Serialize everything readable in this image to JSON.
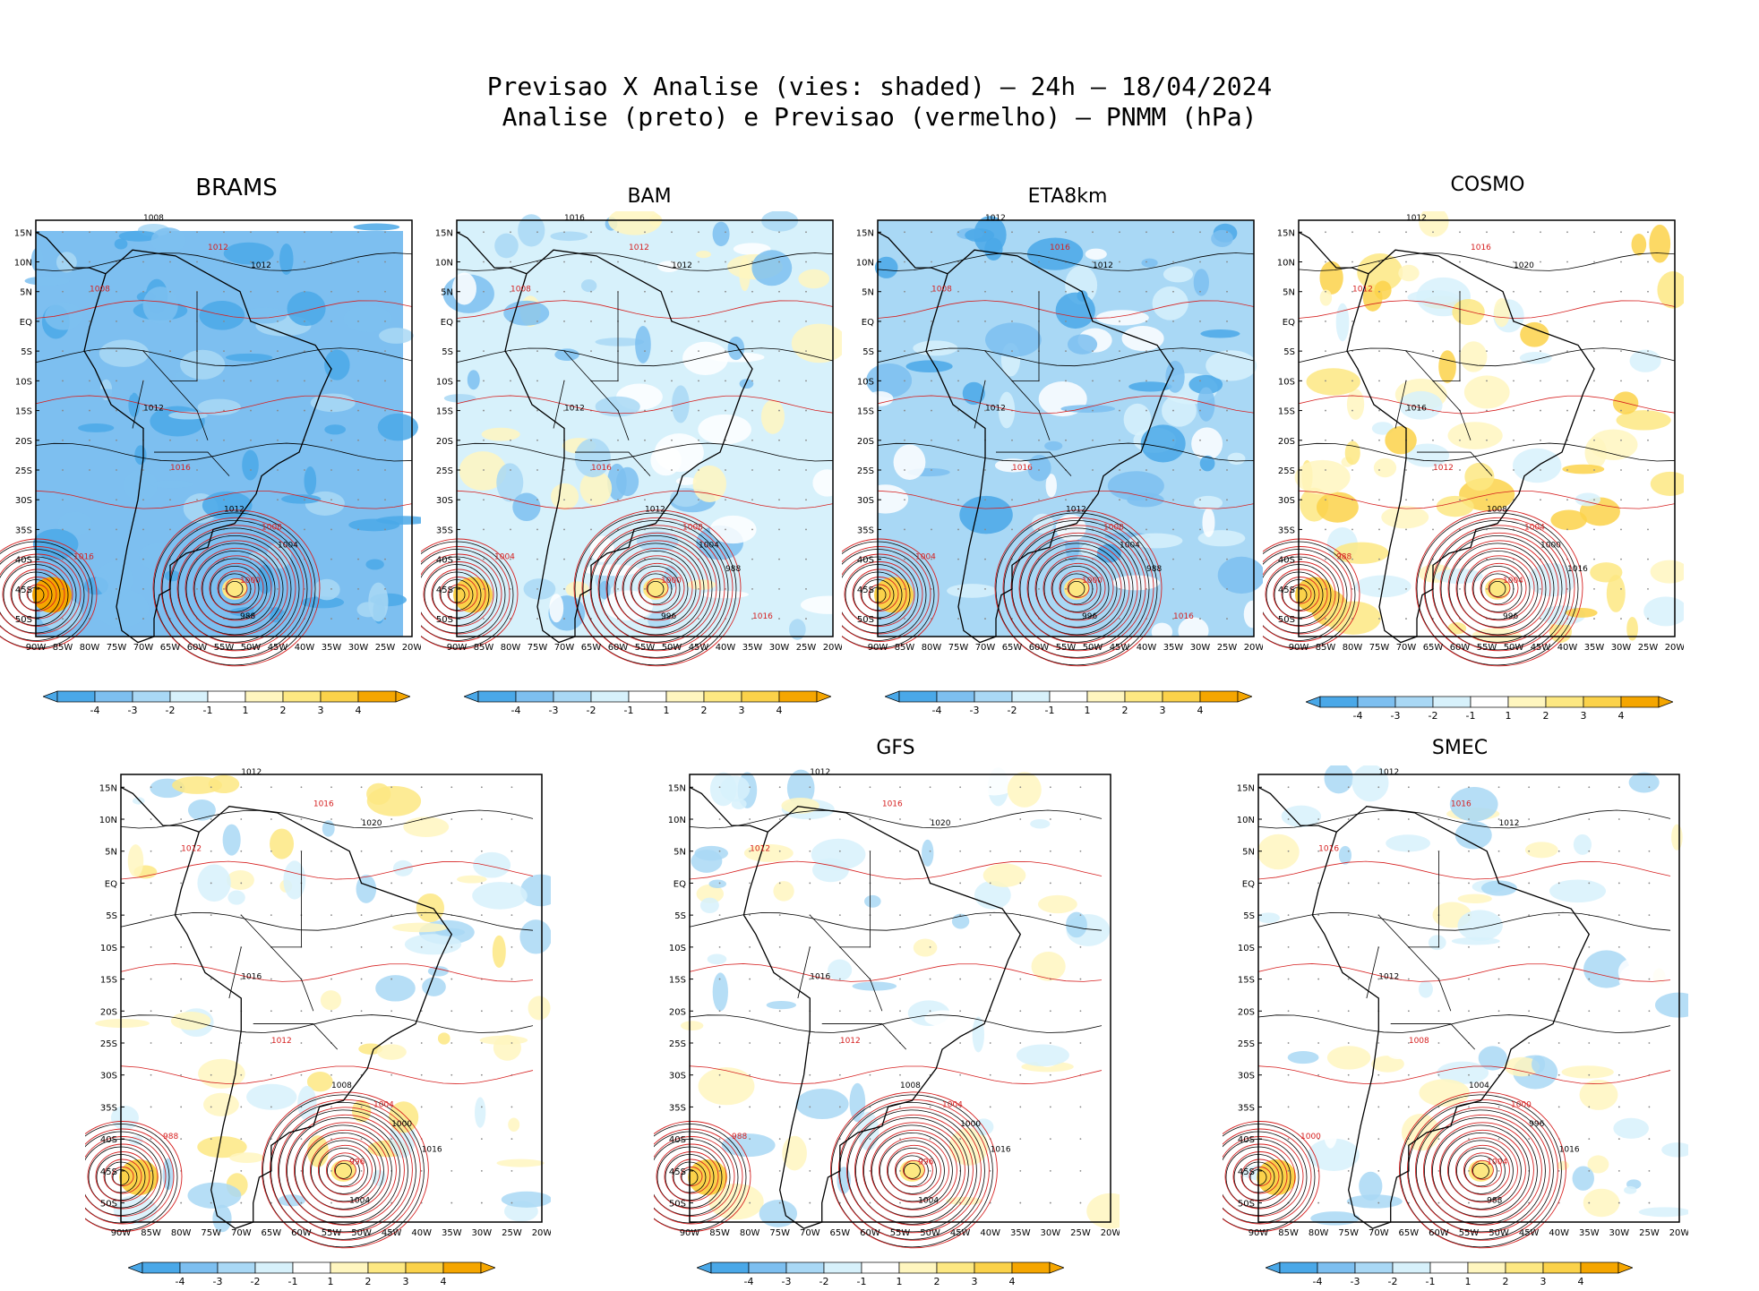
{
  "title_line1": "Previsao X Analise (vies: shaded) – 24h – 18/04/2024",
  "title_line2": "Analise (preto) e Previsao (vermelho) – PNMM (hPa)",
  "lat_labels": [
    "15N",
    "10N",
    "5N",
    "EQ",
    "5S",
    "10S",
    "15S",
    "20S",
    "25S",
    "30S",
    "35S",
    "40S",
    "45S",
    "50S"
  ],
  "lon_labels": [
    "90W",
    "85W",
    "80W",
    "75W",
    "70W",
    "65W",
    "60W",
    "55W",
    "50W",
    "45W",
    "40W",
    "35W",
    "30W",
    "25W",
    "20W"
  ],
  "colorbar_labels": [
    "-4",
    "-3",
    "-2",
    "-1",
    "1",
    "2",
    "3",
    "4"
  ],
  "colors": {
    "bias_neg4": "#4aa8e8",
    "bias_neg3": "#7dbff0",
    "bias_neg2": "#a9d8f5",
    "bias_neg1": "#d7f1fb",
    "bias_pos1": "#fff6bf",
    "bias_pos2": "#fde882",
    "bias_pos3": "#fbd24a",
    "bias_pos4": "#f5a600",
    "analysis_line": "#000000",
    "forecast_line": "#d62020"
  },
  "panels": [
    {
      "name": "BRAMS",
      "bias": "strong-negative",
      "isobars": [
        "1008",
        "1012",
        "1012",
        "1008",
        "1012",
        "1016",
        "1012",
        "1008",
        "1004",
        "1000",
        "988",
        "1016"
      ]
    },
    {
      "name": "BAM",
      "bias": "mixed",
      "isobars": [
        "1016",
        "1012",
        "1012",
        "1008",
        "1012",
        "1016",
        "1012",
        "1008",
        "1004",
        "1000",
        "996",
        "1004",
        "988",
        "1016"
      ]
    },
    {
      "name": "ETA8km",
      "bias": "negative",
      "isobars": [
        "1012",
        "1016",
        "1012",
        "1008",
        "1012",
        "1016",
        "1012",
        "1008",
        "1004",
        "1000",
        "996",
        "1004",
        "988",
        "1016"
      ]
    },
    {
      "name": "COSMO",
      "bias": "positive",
      "isobars": [
        "1012",
        "1016",
        "1020",
        "1012",
        "1016",
        "1012",
        "1008",
        "1004",
        "1000",
        "1004",
        "996",
        "988",
        "1016"
      ]
    },
    {
      "name": "",
      "bias": "mixed-positive",
      "isobars": [
        "1012",
        "1016",
        "1020",
        "1012",
        "1016",
        "1012",
        "1008",
        "1004",
        "1000",
        "996",
        "1004",
        "988",
        "1016"
      ]
    },
    {
      "name": "GFS",
      "bias": "weak",
      "isobars": [
        "1012",
        "1016",
        "1020",
        "1012",
        "1016",
        "1012",
        "1008",
        "1004",
        "1000",
        "996",
        "1004",
        "988",
        "1016"
      ]
    },
    {
      "name": "SMEC",
      "bias": "weak",
      "isobars": [
        "1012",
        "1016",
        "1012",
        "1016",
        "1012",
        "1008",
        "1004",
        "1000",
        "996",
        "1004",
        "988",
        "1000",
        "1016"
      ]
    }
  ]
}
